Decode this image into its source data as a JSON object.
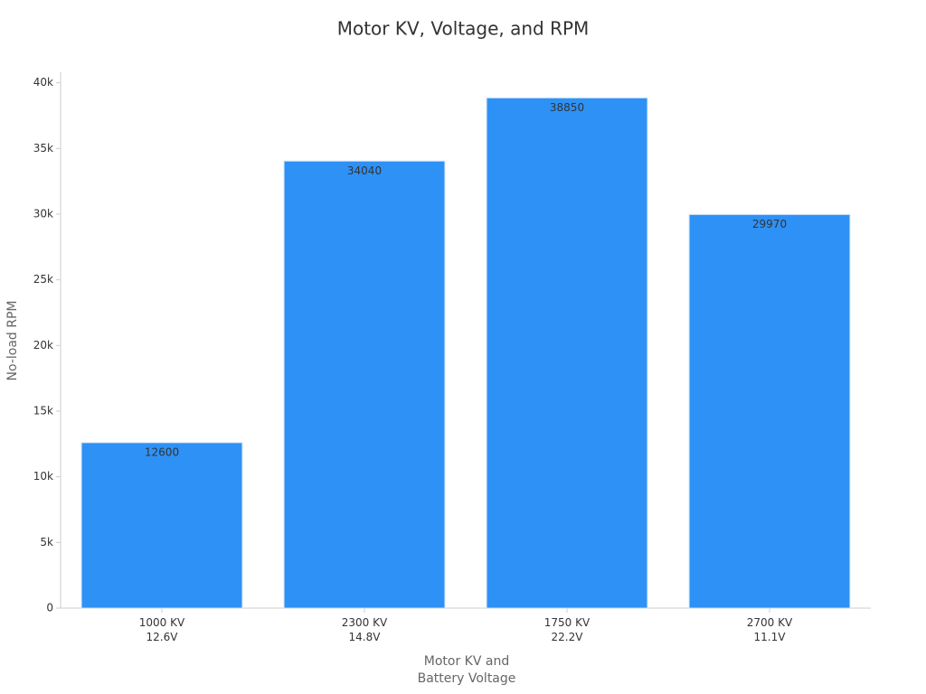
{
  "chart_data": {
    "type": "bar",
    "title": "Motor KV, Voltage, and RPM",
    "x_label": "Motor KV and\nBattery Voltage",
    "y_label": "No-load RPM",
    "categories": [
      "1000 KV\n12.6V",
      "2300 KV\n14.8V",
      "1750 KV\n22.2V",
      "2700 KV\n11.1V"
    ],
    "values": [
      12600,
      34040,
      38850,
      29970
    ],
    "color": "#2e91f5",
    "ylim": [
      0,
      40800
    ],
    "yticks": [
      0,
      {
        "value": 5000,
        "label": "5k"
      },
      {
        "value": 10000,
        "label": "10k"
      },
      {
        "value": 15000,
        "label": "15k"
      },
      {
        "value": 20000,
        "label": "20k"
      },
      {
        "value": 25000,
        "label": "25k"
      },
      {
        "value": 30000,
        "label": "30k"
      },
      {
        "value": 35000,
        "label": "35k"
      },
      {
        "value": 40000,
        "label": "40k"
      }
    ],
    "grid": false
  }
}
